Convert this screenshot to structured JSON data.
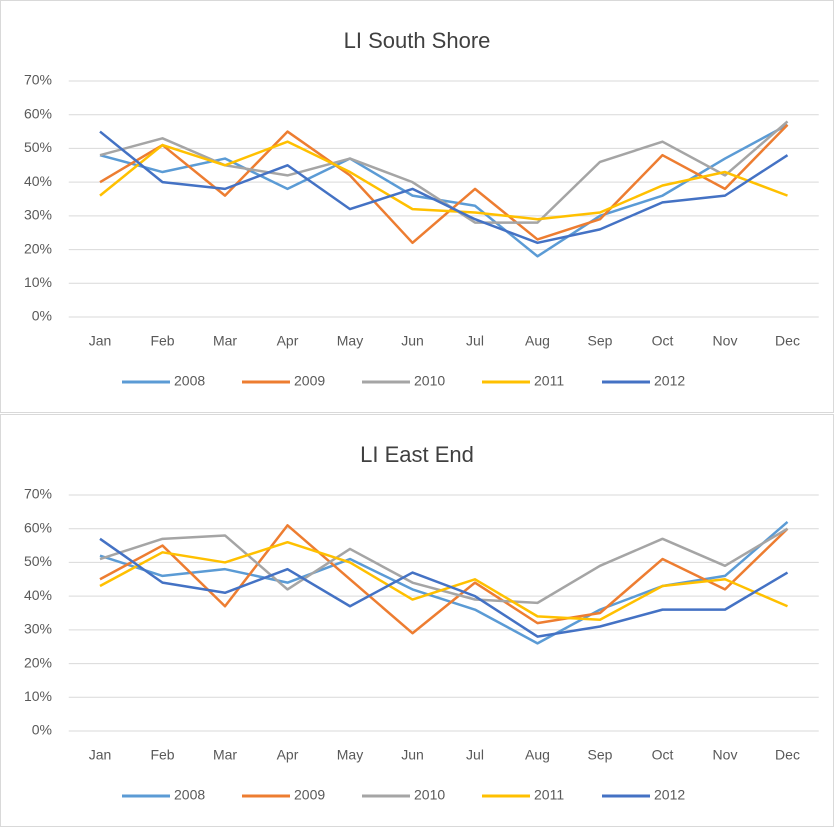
{
  "chart_data": [
    {
      "type": "line",
      "title": "LI South Shore",
      "categories": [
        "Jan",
        "Feb",
        "Mar",
        "Apr",
        "May",
        "Jun",
        "Jul",
        "Aug",
        "Sep",
        "Oct",
        "Nov",
        "Dec"
      ],
      "ylim": [
        0,
        70
      ],
      "yticks": [
        {
          "value": 0,
          "label": "0%"
        },
        {
          "value": 10,
          "label": "10%"
        },
        {
          "value": 20,
          "label": "20%"
        },
        {
          "value": 30,
          "label": "30%"
        },
        {
          "value": 40,
          "label": "40%"
        },
        {
          "value": 50,
          "label": "50%"
        },
        {
          "value": 60,
          "label": "60%"
        },
        {
          "value": 70,
          "label": "70%"
        }
      ],
      "grid": true,
      "legend": "bottom",
      "series": [
        {
          "name": "2008",
          "color": "#5b9bd5",
          "values": [
            48,
            43,
            47,
            38,
            47,
            36,
            33,
            18,
            30,
            36,
            47,
            57
          ]
        },
        {
          "name": "2009",
          "color": "#ed7d31",
          "values": [
            40,
            51,
            36,
            55,
            42,
            22,
            38,
            23,
            29,
            48,
            38,
            57
          ]
        },
        {
          "name": "2010",
          "color": "#a5a5a5",
          "values": [
            48,
            53,
            45,
            42,
            47,
            40,
            28,
            28,
            46,
            52,
            42,
            58
          ]
        },
        {
          "name": "2011",
          "color": "#ffc000",
          "values": [
            36,
            51,
            45,
            52,
            43,
            32,
            31,
            29,
            31,
            39,
            43,
            36
          ]
        },
        {
          "name": "2012",
          "color": "#4472c4",
          "values": [
            55,
            40,
            38,
            45,
            32,
            38,
            29,
            22,
            26,
            34,
            36,
            48
          ]
        }
      ]
    },
    {
      "type": "line",
      "title": "LI East End",
      "categories": [
        "Jan",
        "Feb",
        "Mar",
        "Apr",
        "May",
        "Jun",
        "Jul",
        "Aug",
        "Sep",
        "Oct",
        "Nov",
        "Dec"
      ],
      "ylim": [
        0,
        70
      ],
      "yticks": [
        {
          "value": 0,
          "label": "0%"
        },
        {
          "value": 10,
          "label": "10%"
        },
        {
          "value": 20,
          "label": "20%"
        },
        {
          "value": 30,
          "label": "30%"
        },
        {
          "value": 40,
          "label": "40%"
        },
        {
          "value": 50,
          "label": "50%"
        },
        {
          "value": 60,
          "label": "60%"
        },
        {
          "value": 70,
          "label": "70%"
        }
      ],
      "grid": true,
      "legend": "bottom",
      "series": [
        {
          "name": "2008",
          "color": "#5b9bd5",
          "values": [
            52,
            46,
            48,
            44,
            51,
            42,
            36,
            26,
            36,
            43,
            46,
            62
          ]
        },
        {
          "name": "2009",
          "color": "#ed7d31",
          "values": [
            45,
            55,
            37,
            61,
            45,
            29,
            44,
            32,
            35,
            51,
            42,
            60
          ]
        },
        {
          "name": "2010",
          "color": "#a5a5a5",
          "values": [
            51,
            57,
            58,
            42,
            54,
            44,
            39,
            38,
            49,
            57,
            49,
            60
          ]
        },
        {
          "name": "2011",
          "color": "#ffc000",
          "values": [
            43,
            53,
            50,
            56,
            50,
            39,
            45,
            34,
            33,
            43,
            45,
            37
          ]
        },
        {
          "name": "2012",
          "color": "#4472c4",
          "values": [
            57,
            44,
            41,
            48,
            37,
            47,
            40,
            28,
            31,
            36,
            36,
            47
          ]
        }
      ]
    }
  ]
}
